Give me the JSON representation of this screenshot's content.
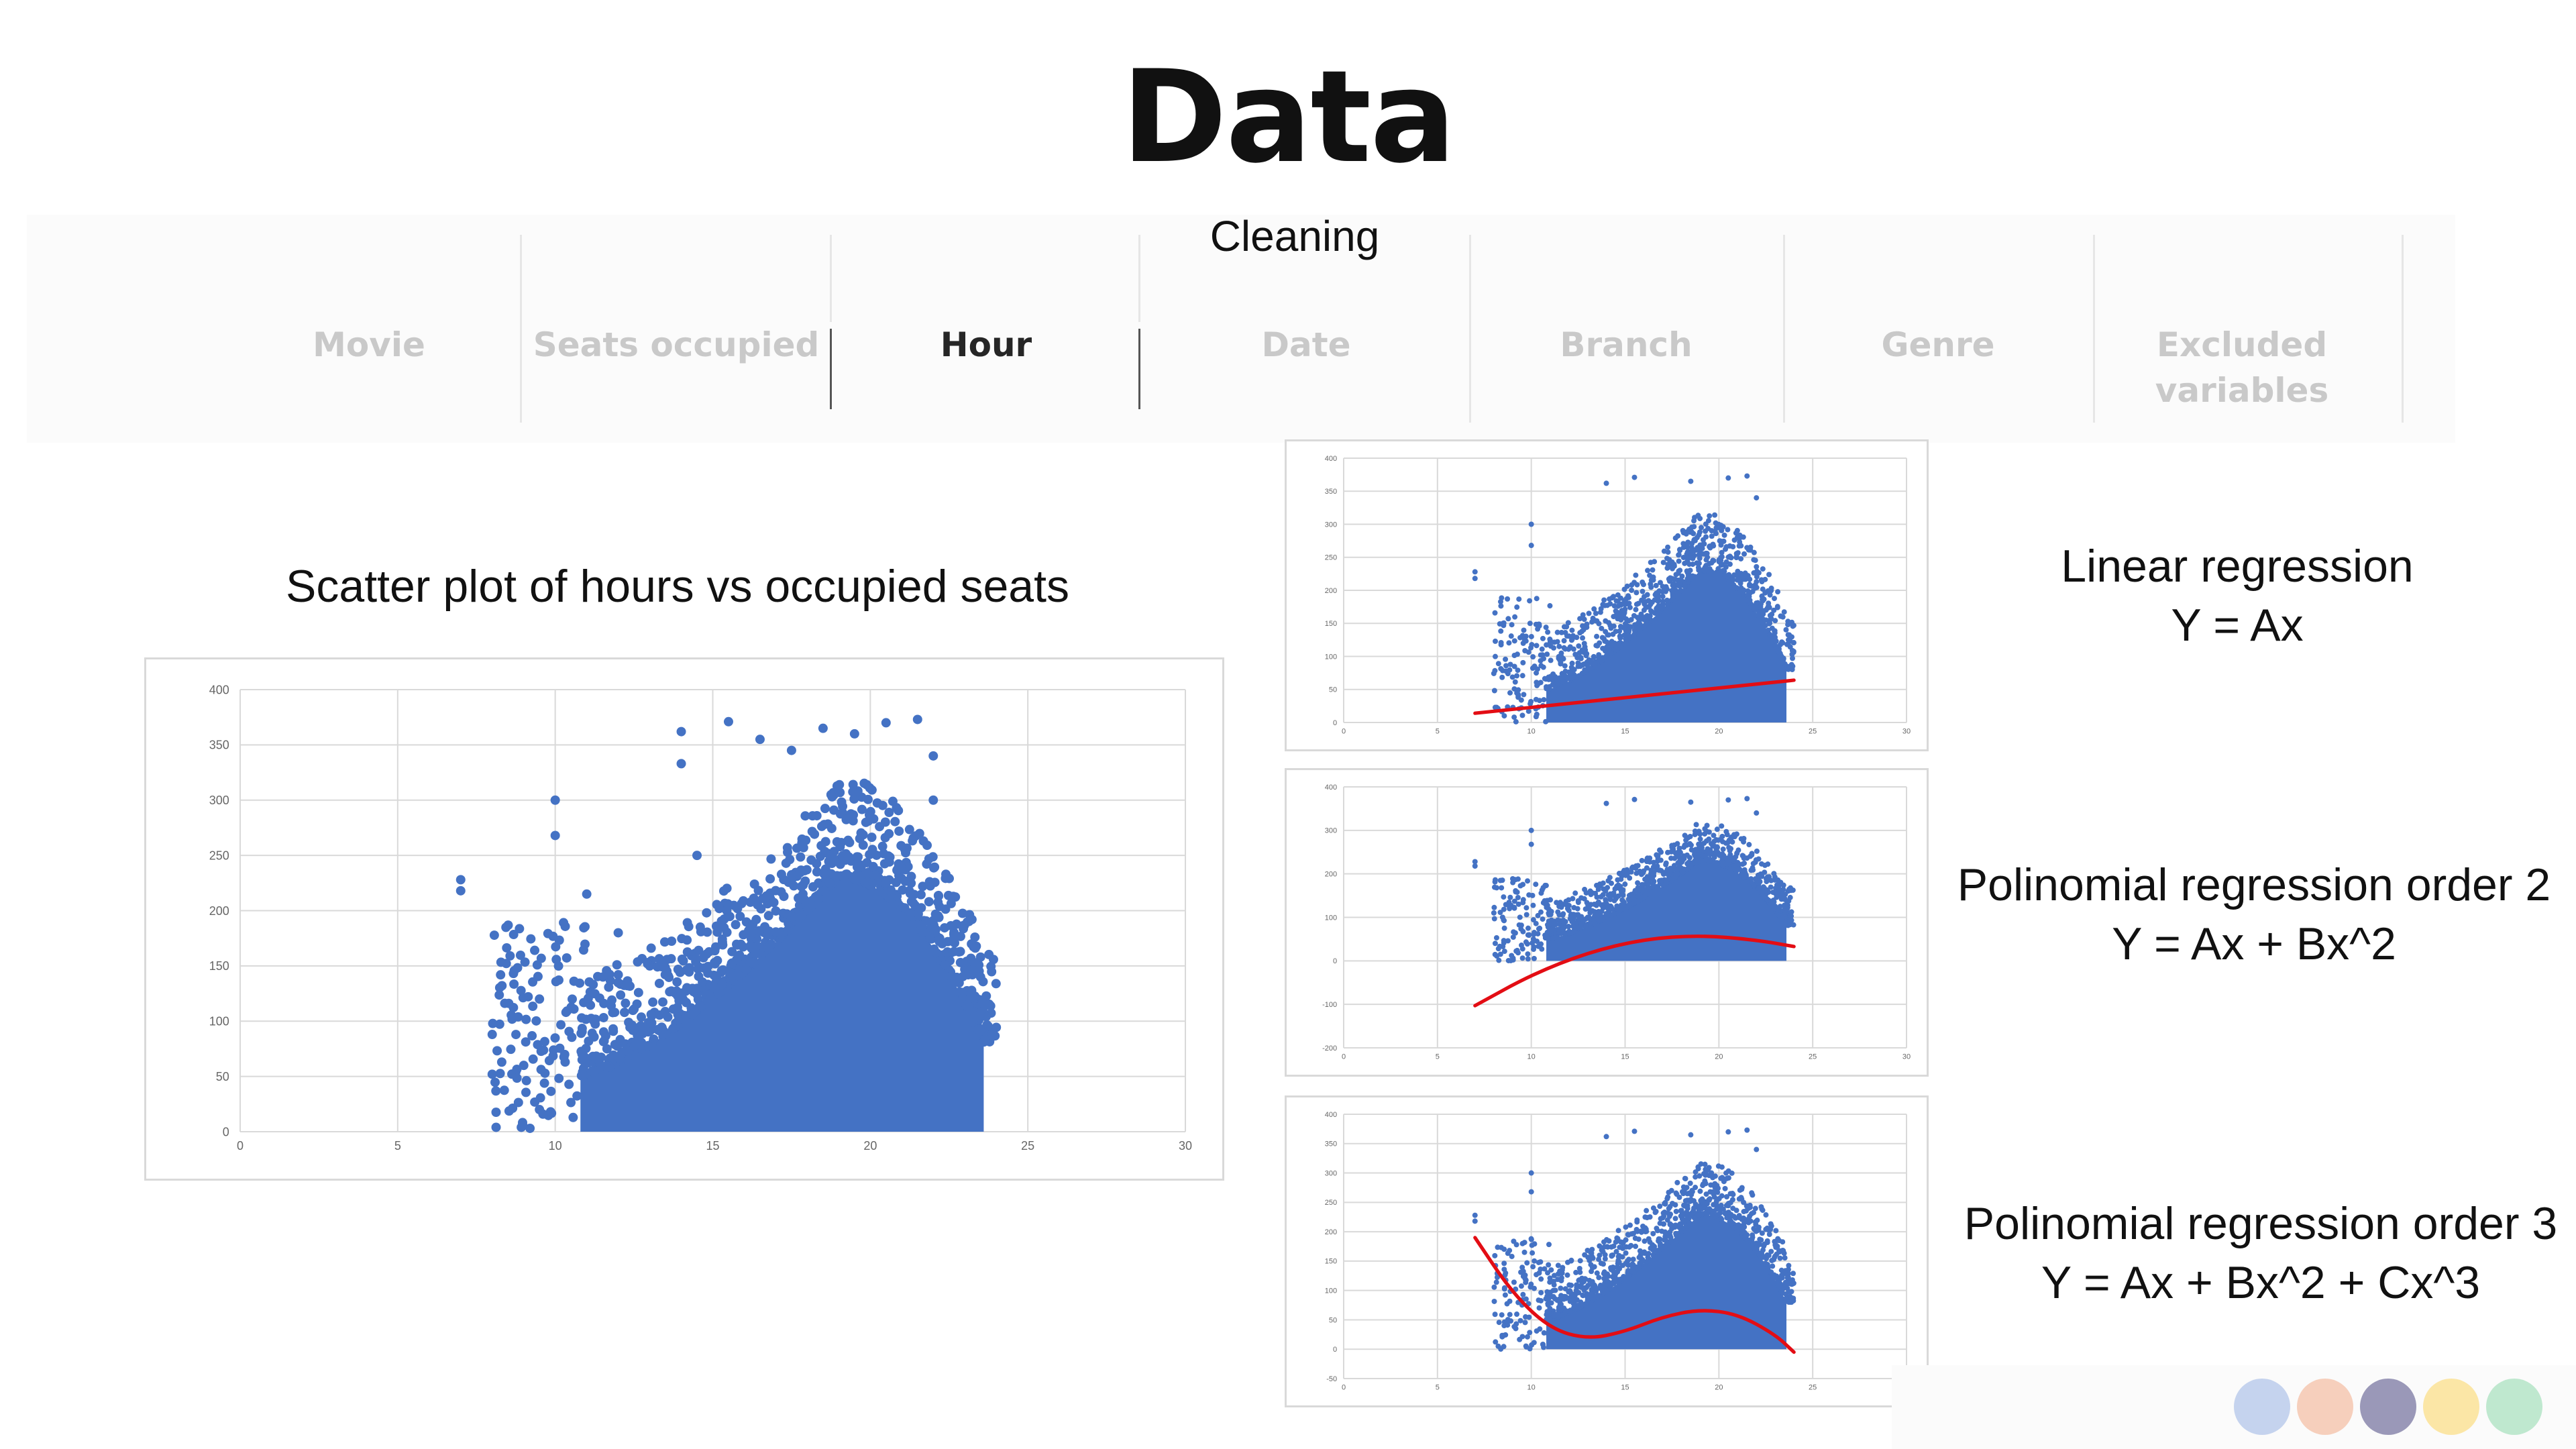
{
  "page": {
    "title": "Data",
    "subtitle": "Cleaning",
    "tabs": [
      {
        "label": "Movie",
        "active": false
      },
      {
        "label": "Seats occupied",
        "active": false
      },
      {
        "label": "Hour",
        "active": true
      },
      {
        "label": "Date",
        "active": false
      },
      {
        "label": "Branch",
        "active": false
      },
      {
        "label": "Genre",
        "active": false
      },
      {
        "label": "Excluded variables",
        "active": false
      }
    ],
    "main_chart_title": "Scatter plot of hours vs occupied seats",
    "labels": [
      {
        "line1": "Linear regression",
        "line2": "Y = Ax"
      },
      {
        "line1": "Polinomial regression order 2",
        "line2": "Y = Ax + Bx^2"
      },
      {
        "line1": "Polinomial regression order 3",
        "line2": "Y = Ax + Bx^2 + Cx^3"
      }
    ],
    "palette_dots": [
      "#c5d3ee",
      "#f6cfbc",
      "#9a98b8",
      "#fbe6a6",
      "#bfe8cf"
    ],
    "colors": {
      "points": "#4472c4",
      "fit": "#e30d14",
      "grid": "#d9d9d9"
    }
  },
  "chart_data": [
    {
      "type": "scatter",
      "title": "Scatter plot of hours vs occupied seats",
      "xlim": [
        0,
        30
      ],
      "xticks": [
        0,
        5,
        10,
        15,
        20,
        25,
        30
      ],
      "ylim": [
        0,
        400
      ],
      "yticks": [
        0,
        50,
        100,
        150,
        200,
        250,
        300,
        350,
        400
      ],
      "grid": true,
      "density": {
        "x_start": 10.8,
        "x_end": 23.6,
        "x_peak": 19,
        "y_top_at_start": 50,
        "y_top_at_peak": 230
      },
      "outliers": [
        [
          7,
          228
        ],
        [
          7,
          218
        ],
        [
          8,
          52
        ],
        [
          8,
          88
        ],
        [
          9.5,
          120
        ],
        [
          10,
          300
        ],
        [
          10,
          268
        ],
        [
          14,
          362
        ],
        [
          14,
          333
        ],
        [
          15.5,
          371
        ],
        [
          16.5,
          355
        ],
        [
          17.5,
          345
        ],
        [
          18.5,
          365
        ],
        [
          19.5,
          360
        ],
        [
          20.5,
          370
        ],
        [
          21.5,
          373
        ],
        [
          22,
          340
        ],
        [
          22,
          300
        ],
        [
          23.5,
          158
        ],
        [
          23.5,
          140
        ],
        [
          9,
          60
        ],
        [
          9.5,
          20
        ],
        [
          11,
          215
        ],
        [
          12,
          180
        ],
        [
          13,
          150
        ],
        [
          14.5,
          250
        ]
      ],
      "fit": null
    },
    {
      "type": "scatter",
      "xlim": [
        0,
        30
      ],
      "xticks": [
        0,
        5,
        10,
        15,
        20,
        25,
        30
      ],
      "ylim": [
        0,
        400
      ],
      "yticks": [
        0,
        50,
        100,
        150,
        200,
        250,
        300,
        350,
        400
      ],
      "grid": true,
      "density": {
        "x_start": 10.8,
        "x_end": 23.6,
        "x_peak": 19,
        "y_top_at_start": 50,
        "y_top_at_peak": 230
      },
      "outliers": [
        [
          7,
          228
        ],
        [
          7,
          218
        ],
        [
          10,
          300
        ],
        [
          10,
          268
        ],
        [
          14,
          362
        ],
        [
          15.5,
          371
        ],
        [
          18.5,
          365
        ],
        [
          20.5,
          370
        ],
        [
          21.5,
          373
        ],
        [
          22,
          340
        ]
      ],
      "fit": {
        "kind": "linear",
        "x_range": [
          7,
          24
        ],
        "points": [
          [
            7,
            14
          ],
          [
            24,
            64
          ]
        ]
      }
    },
    {
      "type": "scatter",
      "xlim": [
        0,
        30
      ],
      "xticks": [
        0,
        5,
        10,
        15,
        20,
        25,
        30
      ],
      "ylim": [
        -200,
        400
      ],
      "yticks": [
        -200,
        -100,
        0,
        100,
        200,
        300,
        400
      ],
      "grid": true,
      "density": {
        "x_start": 10.8,
        "x_end": 23.6,
        "x_peak": 19,
        "y_top_at_start": 50,
        "y_top_at_peak": 230
      },
      "outliers": [
        [
          7,
          228
        ],
        [
          7,
          218
        ],
        [
          10,
          300
        ],
        [
          10,
          268
        ],
        [
          14,
          362
        ],
        [
          15.5,
          371
        ],
        [
          18.5,
          365
        ],
        [
          20.5,
          370
        ],
        [
          21.5,
          373
        ],
        [
          22,
          340
        ]
      ],
      "fit": {
        "kind": "poly2",
        "x_range": [
          7,
          24
        ],
        "points": [
          [
            7,
            -103
          ],
          [
            10,
            -32
          ],
          [
            13,
            19
          ],
          [
            16,
            50
          ],
          [
            19,
            59
          ],
          [
            22,
            48
          ],
          [
            24,
            33
          ]
        ]
      }
    },
    {
      "type": "scatter",
      "xlim": [
        0,
        30
      ],
      "xticks": [
        0,
        5,
        10,
        15,
        20,
        25,
        30
      ],
      "ylim": [
        -50,
        400
      ],
      "yticks": [
        -50,
        0,
        50,
        100,
        150,
        200,
        250,
        300,
        350,
        400
      ],
      "grid": true,
      "density": {
        "x_start": 10.8,
        "x_end": 23.6,
        "x_peak": 19,
        "y_top_at_start": 50,
        "y_top_at_peak": 230
      },
      "outliers": [
        [
          7,
          228
        ],
        [
          7,
          218
        ],
        [
          10,
          300
        ],
        [
          10,
          268
        ],
        [
          14,
          362
        ],
        [
          15.5,
          371
        ],
        [
          18.5,
          365
        ],
        [
          20.5,
          370
        ],
        [
          21.5,
          373
        ],
        [
          22,
          340
        ]
      ],
      "fit": {
        "kind": "poly3",
        "x_range": [
          7,
          24
        ],
        "points": [
          [
            7,
            190
          ],
          [
            9,
            95
          ],
          [
            11,
            35
          ],
          [
            13,
            17
          ],
          [
            15,
            30
          ],
          [
            17,
            55
          ],
          [
            19,
            68
          ],
          [
            21,
            60
          ],
          [
            23,
            25
          ],
          [
            24,
            -5
          ]
        ]
      }
    }
  ]
}
